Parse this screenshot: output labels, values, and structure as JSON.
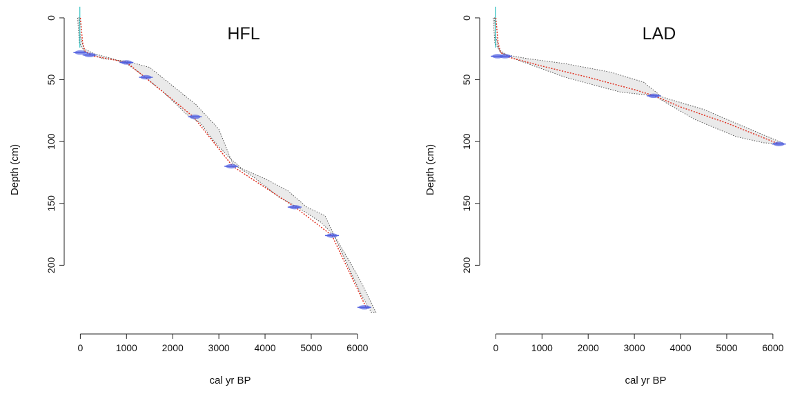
{
  "chart_data": [
    {
      "type": "line",
      "title": "HFL",
      "xlabel": "cal yr BP",
      "ylabel": "Depth (cm)",
      "xlim": [
        -200,
        6600
      ],
      "ylim": [
        250,
        -10
      ],
      "xticks": [
        0,
        1000,
        2000,
        3000,
        4000,
        5000,
        6000
      ],
      "yticks": [
        0,
        50,
        100,
        150,
        200
      ],
      "grid": false,
      "legend": "none",
      "colors": {
        "median": "#e03020",
        "envelope": "#555555",
        "dates": "#5060e0",
        "surface": "#30c0c0"
      },
      "series": [
        {
          "x": [
            0,
            50,
            100,
            300,
            600,
            1000,
            1400,
            2450,
            3300,
            4650,
            5450,
            6200
          ],
          "y": [
            0,
            20,
            27,
            31,
            33,
            36,
            48,
            80,
            120,
            153,
            176,
            235
          ]
        },
        {
          "x": [
            -60,
            -20,
            100,
            500,
            1000,
            1500,
            2000,
            2500,
            3000,
            3300,
            3800,
            4300,
            4700,
            5200,
            5500,
            5800,
            6100,
            6400,
            6300,
            6100,
            5850,
            5500,
            5300,
            4900,
            4500,
            4000,
            3500,
            3200,
            2900,
            2600,
            2300,
            1800,
            1300,
            1000,
            700,
            300,
            80,
            0,
            -30
          ],
          "y": [
            0,
            20,
            28,
            33,
            35,
            40,
            55,
            70,
            90,
            118,
            130,
            145,
            153,
            165,
            176,
            195,
            215,
            238,
            238,
            225,
            205,
            176,
            160,
            153,
            140,
            130,
            122,
            112,
            100,
            85,
            78,
            60,
            45,
            37,
            33,
            29,
            25,
            15,
            0
          ]
        }
      ],
      "dates": [
        {
          "age": 0,
          "depth": 28
        },
        {
          "age": 200,
          "depth": 30
        },
        {
          "age": 1000,
          "depth": 36
        },
        {
          "age": 1420,
          "depth": 48
        },
        {
          "age": 2480,
          "depth": 80
        },
        {
          "age": 3270,
          "depth": 120
        },
        {
          "age": 4640,
          "depth": 153
        },
        {
          "age": 5450,
          "depth": 176
        },
        {
          "age": 6150,
          "depth": 234
        }
      ]
    },
    {
      "type": "line",
      "title": "LAD",
      "xlabel": "cal yr BP",
      "ylabel": "Depth (cm)",
      "xlim": [
        -200,
        6600
      ],
      "ylim": [
        250,
        -10
      ],
      "xticks": [
        0,
        1000,
        2000,
        3000,
        4000,
        5000,
        6000
      ],
      "yticks": [
        0,
        50,
        100,
        150,
        200
      ],
      "grid": false,
      "legend": "none",
      "colors": {
        "median": "#e03020",
        "envelope": "#555555",
        "dates": "#5060e0",
        "surface": "#30c0c0"
      },
      "series": [
        {
          "x": [
            0,
            50,
            100,
            300,
            1000,
            2000,
            3000,
            3430,
            4000,
            5000,
            6000,
            6150
          ],
          "y": [
            0,
            20,
            28,
            32,
            39,
            48,
            58,
            63,
            72,
            85,
            100,
            102
          ]
        },
        {
          "x": [
            -60,
            -20,
            100,
            400,
            1500,
            2700,
            3430,
            4300,
            5200,
            5800,
            6200,
            6200,
            5500,
            4500,
            3600,
            3200,
            2500,
            1500,
            700,
            250,
            80,
            0,
            -30
          ],
          "y": [
            0,
            20,
            28,
            33,
            48,
            60,
            63,
            82,
            96,
            101,
            102,
            101,
            90,
            74,
            64,
            52,
            44,
            37,
            33,
            30,
            26,
            15,
            0
          ]
        }
      ],
      "dates": [
        {
          "age": 40,
          "depth": 31
        },
        {
          "age": 200,
          "depth": 31
        },
        {
          "age": 3420,
          "depth": 63
        },
        {
          "age": 6130,
          "depth": 102
        }
      ]
    }
  ]
}
